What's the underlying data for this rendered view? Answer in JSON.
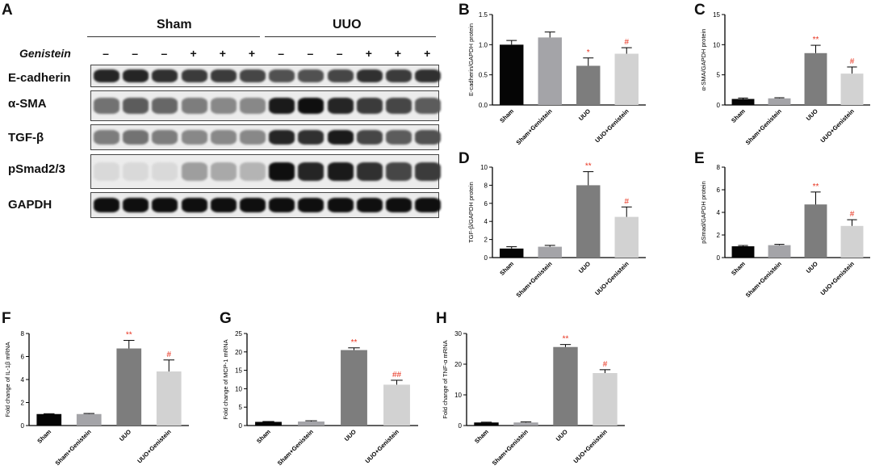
{
  "panels": {
    "A": "A",
    "B": "B",
    "C": "C",
    "D": "D",
    "E": "E",
    "F": "F",
    "G": "G",
    "H": "H"
  },
  "western_blot": {
    "groups": [
      "Sham",
      "UUO"
    ],
    "treatment_label": "Genistein",
    "treatment_signs": [
      "–",
      "–",
      "–",
      "+",
      "+",
      "+",
      "–",
      "–",
      "–",
      "+",
      "+",
      "+"
    ],
    "bands": [
      "E-cadherin",
      "α-SMA",
      "TGF-β",
      "pSmad2/3",
      "GAPDH"
    ],
    "band_intensity": [
      [
        0.9,
        0.9,
        0.85,
        0.8,
        0.8,
        0.75,
        0.7,
        0.7,
        0.75,
        0.85,
        0.8,
        0.85
      ],
      [
        0.55,
        0.65,
        0.6,
        0.5,
        0.45,
        0.45,
        0.95,
        1.0,
        0.9,
        0.8,
        0.75,
        0.65
      ],
      [
        0.5,
        0.55,
        0.5,
        0.45,
        0.45,
        0.45,
        0.9,
        0.85,
        0.95,
        0.75,
        0.65,
        0.7
      ],
      [
        0.08,
        0.08,
        0.08,
        0.35,
        0.3,
        0.25,
        1.0,
        0.9,
        0.95,
        0.85,
        0.75,
        0.8
      ],
      [
        1.0,
        1.0,
        1.0,
        1.0,
        1.0,
        1.0,
        1.0,
        1.0,
        1.0,
        1.0,
        1.0,
        1.0
      ]
    ]
  },
  "colors": {
    "sham": "#050505",
    "sham_genistein": "#a4a4a8",
    "uuo": "#7d7d7d",
    "uuo_genistein": "#d2d2d2",
    "significance": "#e8321e"
  },
  "chart_data": [
    {
      "panel": "B",
      "type": "bar",
      "categories": [
        "Sham",
        "Sham+Genistein",
        "UUO",
        "UUO+Genistein"
      ],
      "values": [
        1.0,
        1.12,
        0.65,
        0.85
      ],
      "errors": [
        0.07,
        0.09,
        0.13,
        0.1
      ],
      "annotations": [
        "",
        "",
        "*",
        "#"
      ],
      "ylabel": "E-cadherin/GAPDH protein",
      "ylim": [
        0,
        1.5
      ],
      "yticks": [
        0.0,
        0.5,
        1.0,
        1.5
      ],
      "ytick_labels": [
        "0.0",
        "0.5",
        "1.0",
        "1.5"
      ]
    },
    {
      "panel": "C",
      "type": "bar",
      "categories": [
        "Sham",
        "Sham+Genistein",
        "UUO",
        "UUO+Genistein"
      ],
      "values": [
        1.0,
        1.1,
        8.6,
        5.2
      ],
      "errors": [
        0.15,
        0.1,
        1.3,
        1.1
      ],
      "annotations": [
        "",
        "",
        "**",
        "#"
      ],
      "ylabel": "α-SMA/GAPDH protein",
      "ylim": [
        0,
        15
      ],
      "yticks": [
        0,
        5,
        10,
        15
      ],
      "ytick_labels": [
        "0",
        "5",
        "10",
        "15"
      ]
    },
    {
      "panel": "D",
      "type": "bar",
      "categories": [
        "Sham",
        "Sham+Genistein",
        "UUO",
        "UUO+Genistein"
      ],
      "values": [
        1.0,
        1.2,
        8.0,
        4.5
      ],
      "errors": [
        0.2,
        0.15,
        1.5,
        1.1
      ],
      "annotations": [
        "",
        "",
        "**",
        "#"
      ],
      "ylabel": "TGF-β/GAPDH protein",
      "ylim": [
        0,
        10
      ],
      "yticks": [
        0,
        2,
        4,
        6,
        8,
        10
      ],
      "ytick_labels": [
        "0",
        "2",
        "4",
        "6",
        "8",
        "10"
      ]
    },
    {
      "panel": "E",
      "type": "bar",
      "categories": [
        "Sham",
        "Sham+Genistein",
        "UUO",
        "UUO+Genistein"
      ],
      "values": [
        1.0,
        1.1,
        4.7,
        2.8
      ],
      "errors": [
        0.07,
        0.07,
        1.1,
        0.55
      ],
      "annotations": [
        "",
        "",
        "**",
        "#"
      ],
      "ylabel": "pSmad/GAPDH protein",
      "ylim": [
        0,
        8
      ],
      "yticks": [
        0,
        2,
        4,
        6,
        8
      ],
      "ytick_labels": [
        "0",
        "2",
        "4",
        "6",
        "8"
      ]
    },
    {
      "panel": "F",
      "type": "bar",
      "categories": [
        "Sham",
        "Sham+Genistein",
        "UUO",
        "UUO+Genistein"
      ],
      "values": [
        1.0,
        1.0,
        6.7,
        4.7
      ],
      "errors": [
        0.03,
        0.05,
        0.7,
        1.0
      ],
      "annotations": [
        "",
        "",
        "**",
        "#"
      ],
      "ylabel": "Fold change of IL-1β mRNA",
      "ylim": [
        0,
        8
      ],
      "yticks": [
        0,
        2,
        4,
        6,
        8
      ],
      "ytick_labels": [
        "0",
        "2",
        "4",
        "6",
        "8"
      ]
    },
    {
      "panel": "G",
      "type": "bar",
      "categories": [
        "Sham",
        "Sham+Genistein",
        "UUO",
        "UUO+Genistein"
      ],
      "values": [
        1.0,
        1.1,
        20.5,
        11.1
      ],
      "errors": [
        0.1,
        0.2,
        0.6,
        1.2
      ],
      "annotations": [
        "",
        "",
        "**",
        "##"
      ],
      "ylabel": "Fold change of MCP-1 mRNA",
      "ylim": [
        0,
        25
      ],
      "yticks": [
        0,
        5,
        10,
        15,
        20,
        25
      ],
      "ytick_labels": [
        "0",
        "5",
        "10",
        "15",
        "20",
        "25"
      ]
    },
    {
      "panel": "H",
      "type": "bar",
      "categories": [
        "Sham",
        "Sham+Genistein",
        "UUO",
        "UUO+Genistein"
      ],
      "values": [
        1.0,
        1.0,
        25.6,
        17.1
      ],
      "errors": [
        0.1,
        0.2,
        0.8,
        1.1
      ],
      "annotations": [
        "",
        "",
        "**",
        "#"
      ],
      "ylabel": "Fold change of TNF-α mRNA",
      "ylim": [
        0,
        30
      ],
      "yticks": [
        0,
        10,
        20,
        30
      ],
      "ytick_labels": [
        "0",
        "10",
        "20",
        "30"
      ]
    }
  ]
}
